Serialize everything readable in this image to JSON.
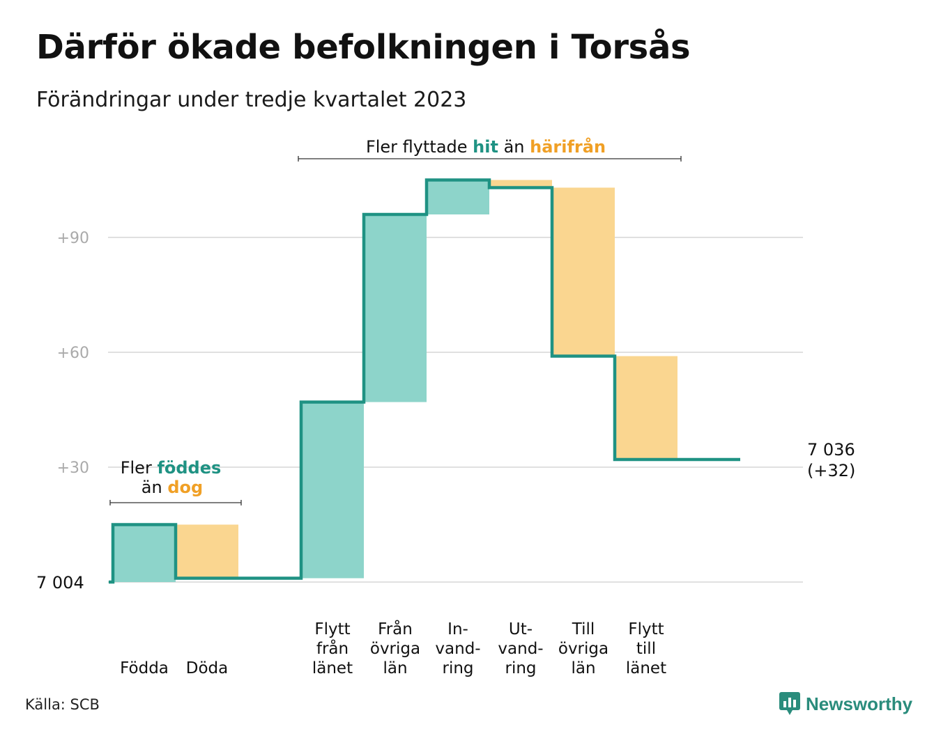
{
  "title": "Därför ökade befolkningen i Torsås",
  "subtitle": "Förändringar under tredje kvartalet 2023",
  "source": "Källa: SCB",
  "brand": "Newsworthy",
  "colors": {
    "increase_fill": "#8dd4ca",
    "decrease_fill": "#fad690",
    "line": "#1f9283",
    "accent_teal": "#1f9283",
    "accent_orange": "#f0a026",
    "grid": "#e0e0e0",
    "tick_text": "#aaaaaa"
  },
  "annotations": {
    "natural": {
      "line1_pre": "Fler",
      "line1_hl": "föddes",
      "line2_pre": "än",
      "line2_hl": "dog"
    },
    "migration": {
      "pre": "Fler flyttade",
      "hl1": "hit",
      "mid": "än",
      "hl2": "härifrån"
    }
  },
  "chart_data": {
    "type": "waterfall",
    "start_label": "7  004",
    "start_value": 0,
    "end_value_label": "7 036",
    "end_change_label": "(+32)",
    "ylim": [
      -1,
      112
    ],
    "y_ticks": [
      {
        "value": 30,
        "label": "+30"
      },
      {
        "value": 60,
        "label": "+60"
      },
      {
        "value": 90,
        "label": "+90"
      }
    ],
    "steps": [
      {
        "label": [
          "Födda"
        ],
        "change": 15,
        "from": 0,
        "to": 15
      },
      {
        "label": [
          "Döda"
        ],
        "change": -14,
        "from": 15,
        "to": 1
      },
      {
        "label": [],
        "change": 0,
        "from": 1,
        "to": 1
      },
      {
        "label": [
          "Flytt",
          "från",
          "länet"
        ],
        "change": 46,
        "from": 1,
        "to": 47
      },
      {
        "label": [
          "Från",
          "övriga",
          "län"
        ],
        "change": 49,
        "from": 47,
        "to": 96
      },
      {
        "label": [
          "In-",
          "vand-",
          "ring"
        ],
        "change": 9,
        "from": 96,
        "to": 105
      },
      {
        "label": [
          "Ut-",
          "vand-",
          "ring"
        ],
        "change": -2,
        "from": 105,
        "to": 103
      },
      {
        "label": [
          "Till",
          "övriga",
          "län"
        ],
        "change": -44,
        "from": 103,
        "to": 59
      },
      {
        "label": [
          "Flytt",
          "till",
          "länet"
        ],
        "change": -27,
        "from": 59,
        "to": 32
      },
      {
        "label": [],
        "change": 0,
        "from": 32,
        "to": 32
      }
    ]
  }
}
